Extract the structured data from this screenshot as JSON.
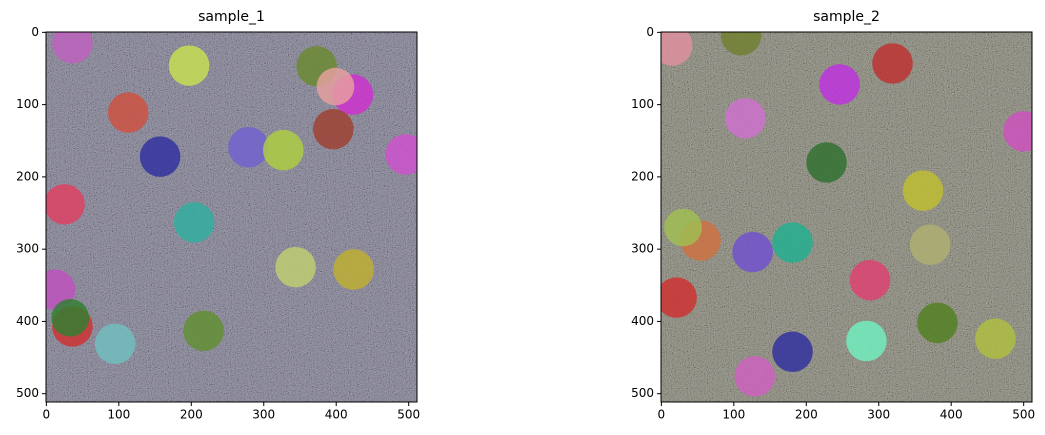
{
  "chart_data": [
    {
      "type": "image",
      "title": "sample_1",
      "xlim": [
        -0.5,
        511.5
      ],
      "ylim": [
        511.5,
        -0.5
      ],
      "xticks": [
        0,
        100,
        200,
        300,
        400,
        500
      ],
      "yticks": [
        0,
        100,
        200,
        300,
        400,
        500
      ]
    },
    {
      "type": "image",
      "title": "sample_2",
      "xlim": [
        -0.5,
        511.5
      ],
      "ylim": [
        511.5,
        -0.5
      ],
      "xticks": [
        0,
        100,
        200,
        300,
        400,
        500
      ],
      "yticks": [
        0,
        100,
        200,
        300,
        400,
        500
      ]
    }
  ]
}
